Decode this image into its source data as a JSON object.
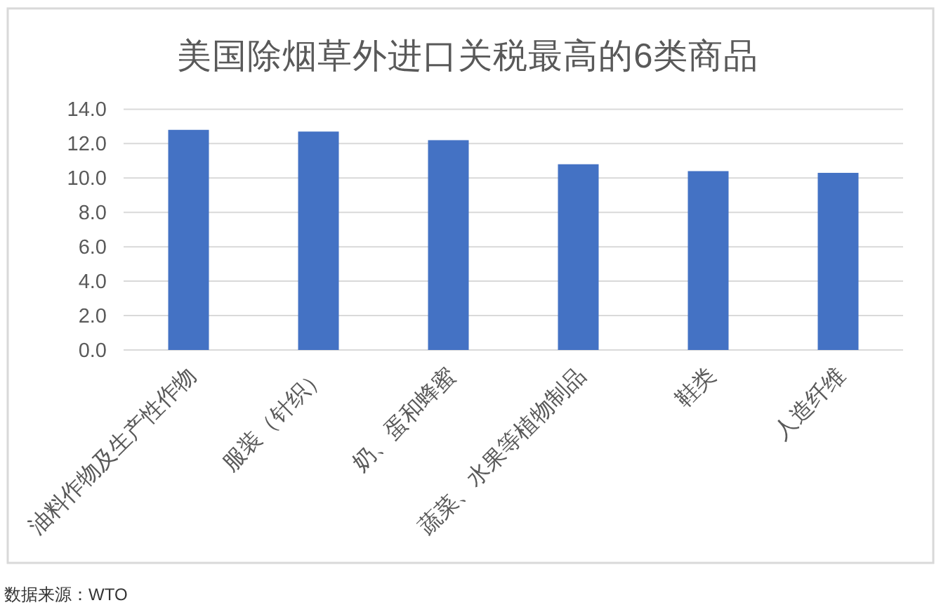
{
  "chart_data": {
    "type": "bar",
    "title": "美国除烟草外进口关税最高的6类商品",
    "categories": [
      "油料作物及生产性作物",
      "服装（针织）",
      "奶、蛋和蜂蜜",
      "蔬菜、水果等植物制品",
      "鞋类",
      "人造纤维"
    ],
    "values": [
      12.8,
      12.7,
      12.2,
      10.8,
      10.4,
      10.3
    ],
    "color": "#4472c4",
    "ylim": [
      0,
      14
    ],
    "yticks": [
      {
        "value": 0,
        "label": "0.0"
      },
      {
        "value": 2,
        "label": "2.0"
      },
      {
        "value": 4,
        "label": "4.0"
      },
      {
        "value": 6,
        "label": "6.0"
      },
      {
        "value": 8,
        "label": "8.0"
      },
      {
        "value": 10,
        "label": "10.0"
      },
      {
        "value": 12,
        "label": "12.0"
      },
      {
        "value": 14,
        "label": "14.0"
      }
    ],
    "grid": "y",
    "annotations": [
      "数据来源：WTO"
    ]
  }
}
